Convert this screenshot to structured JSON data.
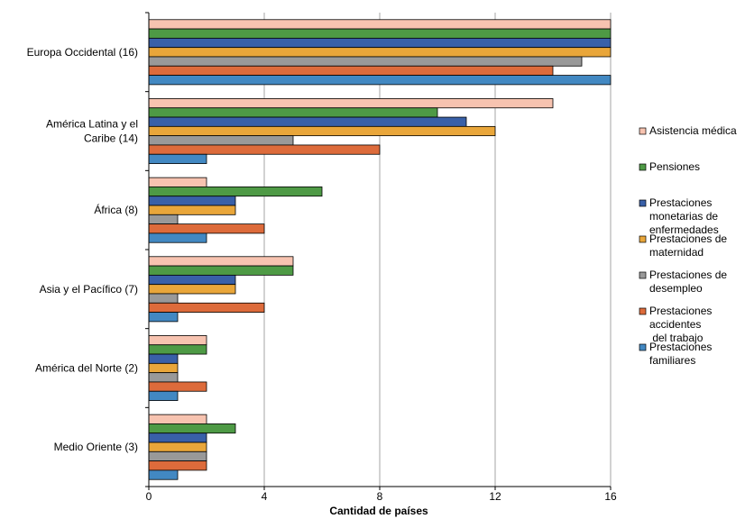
{
  "chart_data": {
    "type": "bar",
    "orientation": "horizontal",
    "xlabel": "Cantidad de países",
    "xlim": [
      0,
      16
    ],
    "xticks": [
      "0",
      "4",
      "8",
      "12",
      "16"
    ],
    "grid": "vertical",
    "legend_position": "right",
    "categories": [
      [
        "Europa Occidental (16)"
      ],
      [
        "América Latina y el",
        "Caribe (14)"
      ],
      [
        "África (8)"
      ],
      [
        "Asia y el Pacífico (7)"
      ],
      [
        "América del Norte (2)"
      ],
      [
        "Medio Oriente (3)"
      ]
    ],
    "series": [
      {
        "name": [
          "Asistencia médica"
        ],
        "color": "#f7c3b0",
        "values": [
          16,
          14,
          2,
          5,
          2,
          2
        ]
      },
      {
        "name": [
          "Pensiones"
        ],
        "color": "#4e9a45",
        "values": [
          16,
          10,
          6,
          5,
          2,
          3
        ]
      },
      {
        "name": [
          "Prestaciones",
          "monetarias de",
          "enfermedades"
        ],
        "color": "#3960a8",
        "values": [
          16,
          11,
          3,
          3,
          1,
          2
        ]
      },
      {
        "name": [
          "Prestaciones de",
          "maternidad"
        ],
        "color": "#e9a63a",
        "values": [
          16,
          12,
          3,
          3,
          1,
          2
        ]
      },
      {
        "name": [
          "Prestaciones de",
          "desempleo"
        ],
        "color": "#999999",
        "values": [
          15,
          5,
          1,
          1,
          1,
          2
        ]
      },
      {
        "name": [
          "Prestaciones",
          "accidentes",
          " del trabajo"
        ],
        "color": "#dd6b3b",
        "values": [
          14,
          8,
          4,
          4,
          2,
          2
        ]
      },
      {
        "name": [
          "Prestaciones",
          "familiares"
        ],
        "color": "#4288c2",
        "values": [
          16,
          2,
          2,
          1,
          1,
          1
        ]
      }
    ]
  }
}
